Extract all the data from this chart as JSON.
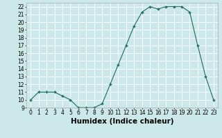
{
  "xlabel": "Humidex (Indice chaleur)",
  "x_values": [
    0,
    1,
    2,
    3,
    4,
    5,
    6,
    7,
    8,
    9,
    10,
    11,
    12,
    13,
    14,
    15,
    16,
    17,
    18,
    19,
    20,
    21,
    22,
    23
  ],
  "y_values": [
    10,
    11,
    11,
    11,
    10.5,
    10,
    9,
    9,
    9,
    9.5,
    12,
    14.5,
    17,
    19.5,
    21.3,
    22,
    21.7,
    22,
    22,
    22,
    21.3,
    17,
    13,
    10
  ],
  "ylim": [
    9,
    22.5
  ],
  "xlim": [
    -0.5,
    23.5
  ],
  "yticks": [
    9,
    10,
    11,
    12,
    13,
    14,
    15,
    16,
    17,
    18,
    19,
    20,
    21,
    22
  ],
  "xticks": [
    0,
    1,
    2,
    3,
    4,
    5,
    6,
    7,
    8,
    9,
    10,
    11,
    12,
    13,
    14,
    15,
    16,
    17,
    18,
    19,
    20,
    21,
    22,
    23
  ],
  "line_color": "#1a6b5a",
  "marker": "+",
  "marker_size": 3,
  "marker_edge_width": 1.0,
  "line_width": 0.8,
  "bg_color": "#cce8e8",
  "grid_color": "#ffffff",
  "tick_label_fontsize": 5.5,
  "xlabel_fontsize": 7.5,
  "spine_color": "#aaaaaa"
}
